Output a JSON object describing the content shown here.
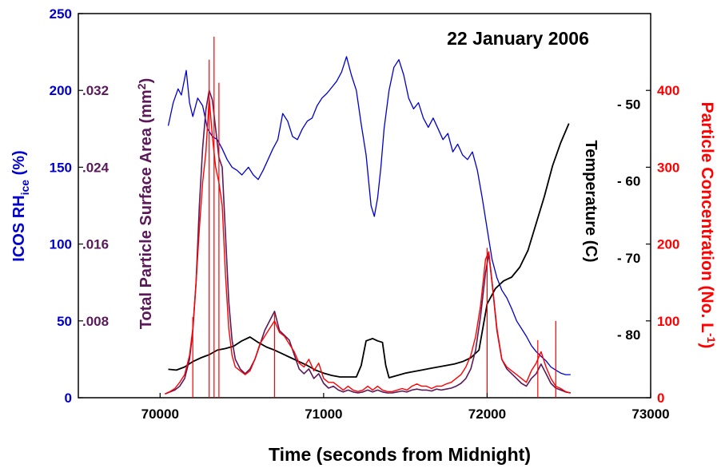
{
  "chart_data": {
    "type": "line",
    "title": "22 January 2006",
    "xlabel": "Time (seconds from Midnight)",
    "xlim": [
      69500,
      73000
    ],
    "x_ticks": [
      70000,
      71000,
      72000,
      73000
    ],
    "colors": {
      "rh": "#0000cc",
      "surface": "#5a1a5a",
      "concentration": "#ff0000",
      "temperature": "#000000"
    },
    "axes": {
      "rh": {
        "label_main": "ICOS RH",
        "label_sub": "ice",
        "label_end": " (%)",
        "ylim": [
          0,
          250
        ],
        "ticks": [
          0,
          50,
          100,
          150,
          200,
          250
        ]
      },
      "surface": {
        "label_main": "Total Particle Surface Area (mm",
        "label_sup": "2",
        "label_end": ")",
        "ylim": [
          0,
          0.04
        ],
        "tick_values": [
          0.008,
          0.016,
          0.024,
          0.032
        ],
        "tick_labels": [
          ".008",
          ".016",
          ".024",
          ".032"
        ]
      },
      "temperature": {
        "label": "Temperature (C)",
        "ylim": [
          -88.2,
          -38.2
        ],
        "tick_values": [
          -80,
          -70,
          -60,
          -50
        ],
        "tick_labels": [
          "- 80",
          "- 70",
          "- 60",
          "- 50"
        ]
      },
      "concentration": {
        "label_main": "Particle Concentration (No. L",
        "label_sup": "-1",
        "label_end": ")",
        "ylim": [
          0,
          500
        ],
        "ticks": [
          0,
          100,
          200,
          300,
          400
        ]
      }
    },
    "series": [
      {
        "key": "rh",
        "axis": "rh",
        "x": [
          70050,
          70080,
          70110,
          70130,
          70160,
          70180,
          70200,
          70230,
          70260,
          70290,
          70320,
          70350,
          70380,
          70410,
          70440,
          70470,
          70500,
          70540,
          70570,
          70600,
          70630,
          70660,
          70690,
          70720,
          70750,
          70780,
          70810,
          70840,
          70870,
          70900,
          70930,
          70960,
          70990,
          71020,
          71050,
          71080,
          71110,
          71140,
          71170,
          71200,
          71230,
          71260,
          71290,
          71310,
          71330,
          71350,
          71370,
          71400,
          71430,
          71460,
          71490,
          71520,
          71550,
          71580,
          71610,
          71640,
          71670,
          71700,
          71730,
          71760,
          71790,
          71820,
          71850,
          71880,
          71910,
          71940,
          71970,
          72000,
          72030,
          72060,
          72090,
          72120,
          72150,
          72180,
          72210,
          72240,
          72270,
          72300,
          72330,
          72360,
          72390,
          72420,
          72450,
          72480,
          72510
        ],
        "y": [
          177,
          192,
          201,
          197,
          213,
          192,
          183,
          195,
          190,
          175,
          170,
          168,
          162,
          155,
          150,
          148,
          145,
          150,
          145,
          142,
          148,
          155,
          162,
          168,
          185,
          180,
          170,
          168,
          175,
          180,
          182,
          190,
          195,
          198,
          202,
          206,
          212,
          222,
          210,
          200,
          178,
          158,
          125,
          118,
          130,
          150,
          175,
          200,
          215,
          220,
          210,
          195,
          188,
          192,
          182,
          176,
          182,
          175,
          168,
          172,
          160,
          165,
          158,
          155,
          160,
          148,
          130,
          110,
          90,
          78,
          70,
          65,
          58,
          50,
          45,
          40,
          34,
          30,
          27,
          24,
          20,
          18,
          16,
          15,
          15
        ]
      },
      {
        "key": "temperature",
        "axis": "temperature",
        "x": [
          70050,
          70100,
          70150,
          70200,
          70250,
          70300,
          70350,
          70400,
          70450,
          70500,
          70550,
          70600,
          70650,
          70700,
          70750,
          70800,
          70850,
          70900,
          70950,
          71000,
          71050,
          71100,
          71150,
          71200,
          71230,
          71260,
          71300,
          71330,
          71360,
          71380,
          71400,
          71450,
          71500,
          71550,
          71600,
          71650,
          71700,
          71750,
          71800,
          71850,
          71900,
          71950,
          72000,
          72050,
          72100,
          72150,
          72200,
          72250,
          72300,
          72350,
          72400,
          72450,
          72500
        ],
        "y": [
          -84.5,
          -84.6,
          -84.2,
          -83.5,
          -83.0,
          -82.6,
          -82.0,
          -81.8,
          -81.5,
          -80.8,
          -80.3,
          -81.0,
          -81.6,
          -82.0,
          -82.5,
          -83.0,
          -83.5,
          -84.0,
          -84.6,
          -85.0,
          -85.3,
          -85.5,
          -85.5,
          -85.5,
          -84.0,
          -80.8,
          -80.5,
          -80.8,
          -81.0,
          -84.0,
          -85.6,
          -85.3,
          -85.0,
          -84.8,
          -84.6,
          -84.4,
          -84.2,
          -84.0,
          -83.8,
          -83.5,
          -83.0,
          -82.0,
          -76.0,
          -74.0,
          -73.0,
          -72.5,
          -71.2,
          -69.0,
          -65.5,
          -62.0,
          -58.0,
          -55.0,
          -52.5
        ]
      },
      {
        "key": "surface",
        "axis": "surface",
        "x": [
          70030,
          70060,
          70090,
          70120,
          70150,
          70180,
          70200,
          70220,
          70240,
          70260,
          70280,
          70300,
          70320,
          70340,
          70360,
          70380,
          70400,
          70420,
          70440,
          70460,
          70490,
          70520,
          70550,
          70580,
          70610,
          70640,
          70670,
          70700,
          70730,
          70760,
          70790,
          70820,
          70850,
          70880,
          70910,
          70940,
          70970,
          71000,
          71030,
          71060,
          71090,
          71120,
          71150,
          71180,
          71210,
          71240,
          71270,
          71300,
          71330,
          71360,
          71390,
          71420,
          71450,
          71480,
          71510,
          71540,
          71570,
          71600,
          71630,
          71660,
          71690,
          71720,
          71750,
          71780,
          71810,
          71840,
          71870,
          71900,
          71930,
          71960,
          71990,
          72010,
          72030,
          72060,
          72090,
          72120,
          72150,
          72180,
          72210,
          72240,
          72270,
          72300,
          72330,
          72360,
          72390,
          72420,
          72450,
          72480,
          72510
        ],
        "y": [
          0.0004,
          0.0006,
          0.0008,
          0.0012,
          0.002,
          0.004,
          0.007,
          0.012,
          0.02,
          0.026,
          0.03,
          0.032,
          0.031,
          0.028,
          0.025,
          0.024,
          0.017,
          0.01,
          0.006,
          0.004,
          0.003,
          0.0025,
          0.003,
          0.004,
          0.0055,
          0.007,
          0.008,
          0.009,
          0.007,
          0.0065,
          0.006,
          0.0045,
          0.003,
          0.0025,
          0.003,
          0.002,
          0.0025,
          0.0015,
          0.001,
          0.0012,
          0.0008,
          0.0006,
          0.0008,
          0.0006,
          0.0005,
          0.0006,
          0.0008,
          0.0006,
          0.0008,
          0.0006,
          0.0005,
          0.0005,
          0.0006,
          0.0007,
          0.0006,
          0.0008,
          0.0009,
          0.0008,
          0.0008,
          0.0007,
          0.0009,
          0.0008,
          0.0009,
          0.001,
          0.0012,
          0.0015,
          0.002,
          0.003,
          0.005,
          0.0085,
          0.013,
          0.015,
          0.012,
          0.007,
          0.004,
          0.003,
          0.0025,
          0.002,
          0.0015,
          0.0012,
          0.002,
          0.0025,
          0.0035,
          0.0025,
          0.0015,
          0.001,
          0.0008,
          0.0006,
          0.0005
        ]
      },
      {
        "key": "concentration",
        "axis": "concentration",
        "x": [
          70030,
          70060,
          70090,
          70120,
          70150,
          70180,
          70200,
          70220,
          70240,
          70260,
          70280,
          70300,
          70320,
          70340,
          70360,
          70380,
          70400,
          70420,
          70440,
          70460,
          70490,
          70520,
          70550,
          70580,
          70610,
          70640,
          70670,
          70700,
          70730,
          70760,
          70790,
          70820,
          70850,
          70880,
          70910,
          70940,
          70970,
          71000,
          71030,
          71060,
          71090,
          71120,
          71150,
          71180,
          71210,
          71240,
          71270,
          71300,
          71330,
          71360,
          71390,
          71420,
          71450,
          71480,
          71510,
          71540,
          71570,
          71600,
          71630,
          71660,
          71690,
          71720,
          71750,
          71780,
          71810,
          71840,
          71870,
          71900,
          71930,
          71960,
          71990,
          72010,
          72030,
          72060,
          72090,
          72120,
          72150,
          72180,
          72210,
          72240,
          72270,
          72300,
          72330,
          72360,
          72390,
          72420,
          72450,
          72480,
          72510
        ],
        "y": [
          5,
          8,
          12,
          20,
          30,
          55,
          90,
          150,
          220,
          280,
          320,
          390,
          340,
          300,
          280,
          250,
          160,
          90,
          55,
          40,
          35,
          30,
          35,
          50,
          70,
          80,
          90,
          100,
          85,
          80,
          70,
          60,
          45,
          40,
          50,
          35,
          45,
          25,
          20,
          20,
          15,
          10,
          15,
          10,
          8,
          10,
          15,
          10,
          15,
          10,
          8,
          8,
          10,
          12,
          10,
          15,
          18,
          15,
          15,
          12,
          15,
          15,
          18,
          20,
          25,
          30,
          40,
          55,
          80,
          120,
          180,
          190,
          150,
          90,
          50,
          40,
          35,
          30,
          25,
          20,
          35,
          45,
          60,
          40,
          25,
          15,
          12,
          8,
          6
        ]
      }
    ],
    "bursts": [
      {
        "x": 70330,
        "y": 470
      },
      {
        "x": 70360,
        "y": 410
      },
      {
        "x": 70300,
        "y": 440
      },
      {
        "x": 70200,
        "y": 105
      },
      {
        "x": 70700,
        "y": 110
      },
      {
        "x": 72000,
        "y": 195
      },
      {
        "x": 72420,
        "y": 100
      },
      {
        "x": 72310,
        "y": 75
      }
    ]
  }
}
